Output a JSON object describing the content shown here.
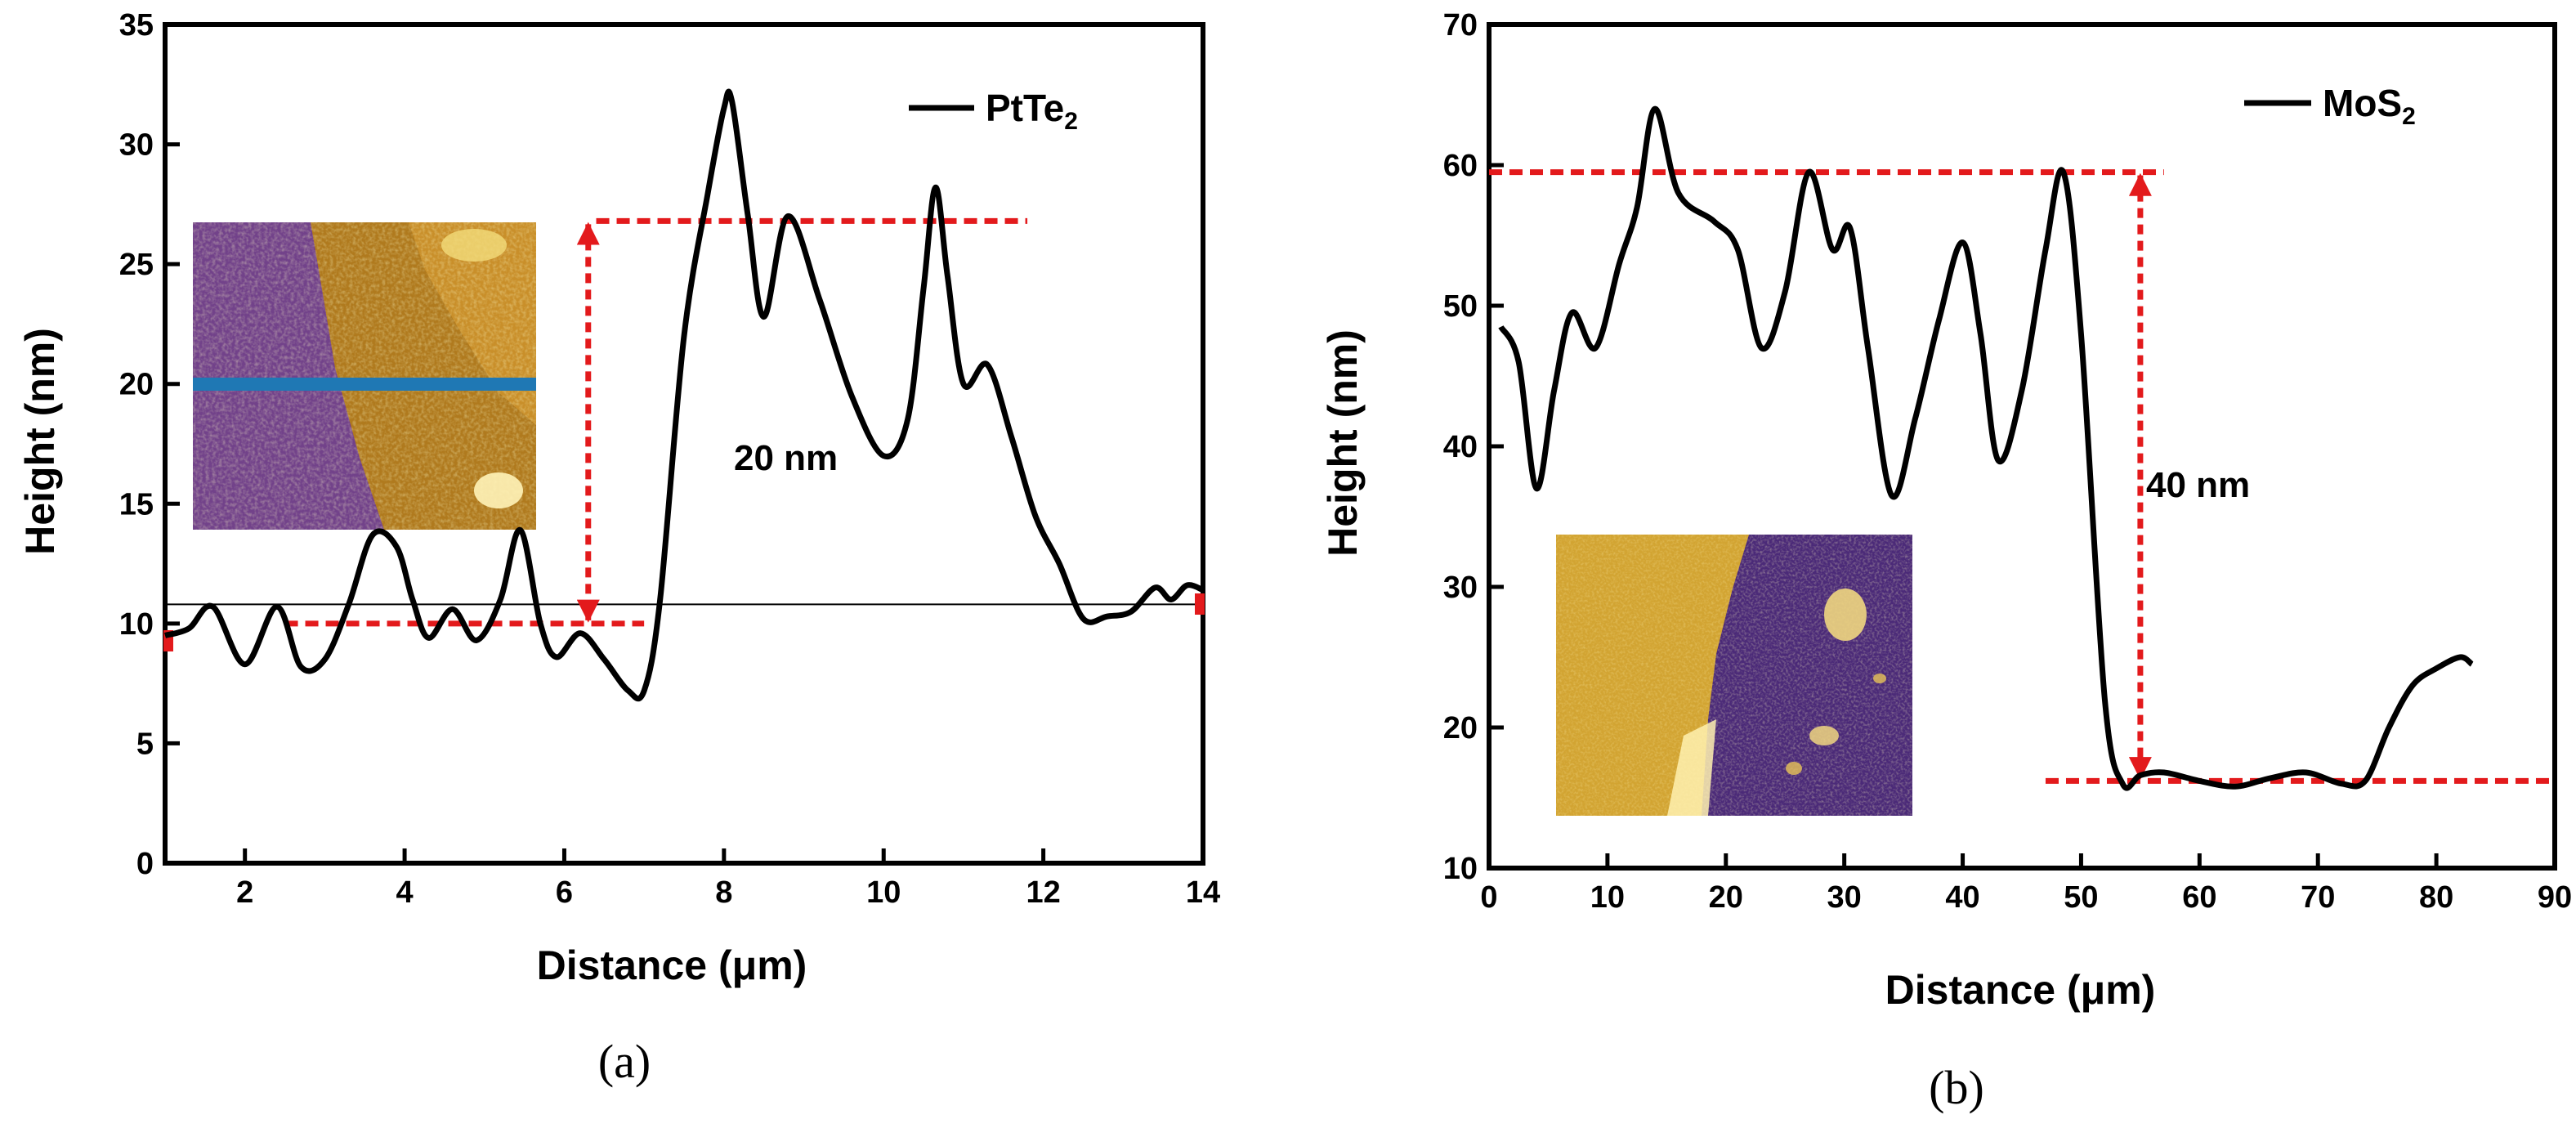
{
  "chart_data": [
    {
      "type": "line",
      "panel_label": "(a)",
      "xlabel": "Distance (μm)",
      "ylabel": "Height (nm)",
      "xlim": [
        1,
        14
      ],
      "ylim": [
        0,
        35
      ],
      "xticks": [
        2,
        4,
        6,
        8,
        10,
        12,
        14
      ],
      "yticks": [
        0,
        5,
        10,
        15,
        20,
        25,
        30,
        35
      ],
      "legend": {
        "prefix": "PtTe",
        "sub": "2",
        "position": "top-right"
      },
      "annotation": "20 nm",
      "reference_line_y": 10.8,
      "step_levels": {
        "upper": 26.8,
        "lower": 10
      },
      "series": [
        {
          "name": "PtTe2",
          "x": [
            1.0,
            1.3,
            1.6,
            2.0,
            2.4,
            2.7,
            3.0,
            3.3,
            3.6,
            3.9,
            4.1,
            4.3,
            4.6,
            4.9,
            5.2,
            5.45,
            5.7,
            5.9,
            6.2,
            6.5,
            6.8,
            7.0,
            7.2,
            7.5,
            7.8,
            8.0,
            8.1,
            8.3,
            8.5,
            8.8,
            9.2,
            9.6,
            10.0,
            10.3,
            10.5,
            10.65,
            10.8,
            11.0,
            11.3,
            11.6,
            11.9,
            12.2,
            12.5,
            12.8,
            13.1,
            13.4,
            13.6,
            13.8,
            14.0
          ],
          "y": [
            9.5,
            9.8,
            10.7,
            8.3,
            10.7,
            8.2,
            8.5,
            10.8,
            13.7,
            13.2,
            11.0,
            9.4,
            10.6,
            9.3,
            11.0,
            13.9,
            10.0,
            8.6,
            9.6,
            8.5,
            7.2,
            7.2,
            11.0,
            22.0,
            28.0,
            31.5,
            31.8,
            27.0,
            22.8,
            27.0,
            23.5,
            19.5,
            17.0,
            18.5,
            24.0,
            28.2,
            24.5,
            20.0,
            20.8,
            17.8,
            14.5,
            12.5,
            10.2,
            10.3,
            10.5,
            11.5,
            11.0,
            11.6,
            11.4
          ]
        }
      ]
    },
    {
      "type": "line",
      "panel_label": "(b)",
      "xlabel": "Distance (μm)",
      "ylabel": "Height (nm)",
      "xlim": [
        0,
        90
      ],
      "ylim": [
        10,
        70
      ],
      "xticks": [
        0,
        10,
        20,
        30,
        40,
        50,
        60,
        70,
        80,
        90
      ],
      "yticks": [
        10,
        20,
        30,
        40,
        50,
        60,
        70
      ],
      "legend": {
        "prefix": "MoS",
        "sub": "2",
        "position": "top-right"
      },
      "annotation": "40 nm",
      "step_levels": {
        "upper": 59.5,
        "lower": 16.2
      },
      "series": [
        {
          "name": "MoS2",
          "x": [
            1,
            2.5,
            4,
            5.5,
            7,
            9,
            11,
            12.5,
            14,
            16,
            19,
            21,
            23,
            25,
            27,
            29,
            30.5,
            32,
            34,
            36,
            38,
            40,
            41.5,
            43,
            45,
            47,
            48.5,
            50,
            52,
            53.5,
            55,
            57,
            60,
            63,
            66,
            69,
            72,
            74,
            76,
            78,
            80,
            82,
            83
          ],
          "y": [
            48.5,
            46,
            37,
            44,
            49.5,
            47,
            53,
            57,
            64,
            58,
            56,
            54,
            47,
            51,
            59.5,
            54,
            55.5,
            47,
            36.5,
            42,
            49,
            54.5,
            48,
            39,
            44,
            54,
            59.5,
            48,
            22,
            16,
            16.6,
            16.8,
            16.2,
            15.8,
            16.4,
            16.8,
            16,
            16.2,
            20,
            23,
            24.2,
            25,
            24.5
          ]
        }
      ]
    }
  ]
}
